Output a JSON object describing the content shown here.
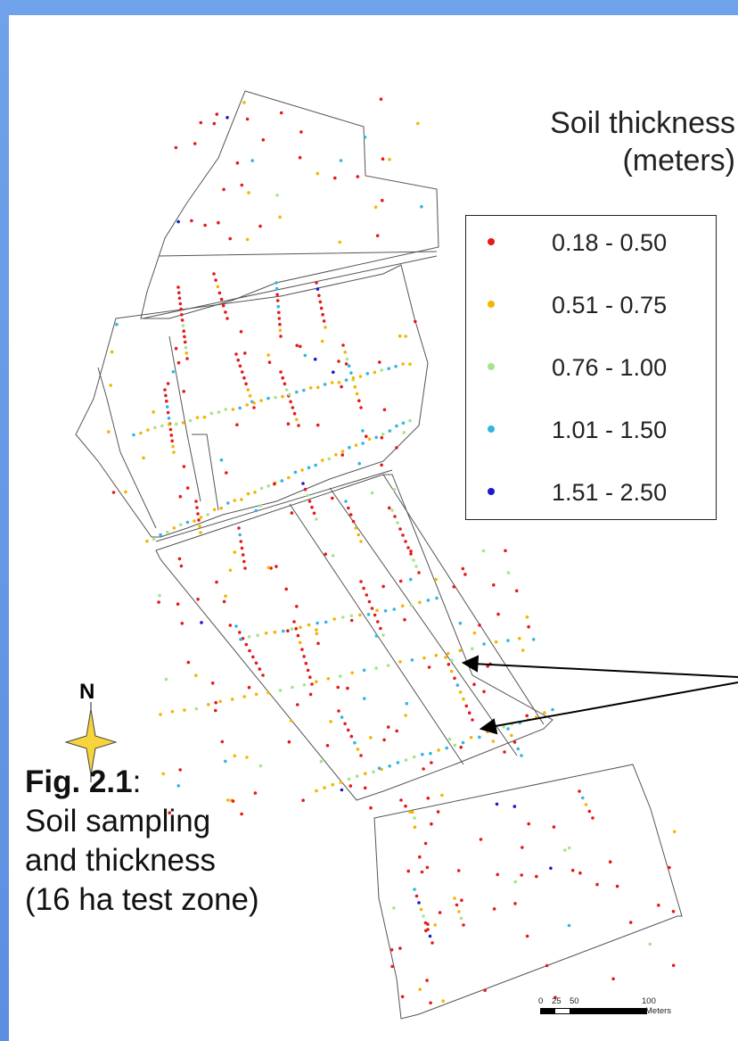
{
  "legend": {
    "title_line1": "Soil thickness",
    "title_line2": "(meters)",
    "classes": [
      {
        "label": "0.18 - 0.50",
        "color": "#e41a1c"
      },
      {
        "label": "0.51 - 0.75",
        "color": "#f5b400"
      },
      {
        "label": "0.76 - 1.00",
        "color": "#a6e48c"
      },
      {
        "label": "1.01 - 1.50",
        "color": "#33b5e5"
      },
      {
        "label": "1.51 - 2.50",
        "color": "#1a1acc"
      }
    ]
  },
  "north_arrow": {
    "label": "N",
    "icon": "north-star-icon"
  },
  "caption": {
    "fig_label": "Fig. 2.1",
    "fig_suffix": ":",
    "line2": "Soil sampling",
    "line3": "and thickness",
    "line4": "(16 ha test zone)"
  },
  "scale_bar": {
    "ticks": [
      "0",
      "25",
      "50",
      "100"
    ],
    "unit": "Meters"
  },
  "colors": {
    "frame": "#6fa2ea",
    "boundary": "#555555"
  }
}
